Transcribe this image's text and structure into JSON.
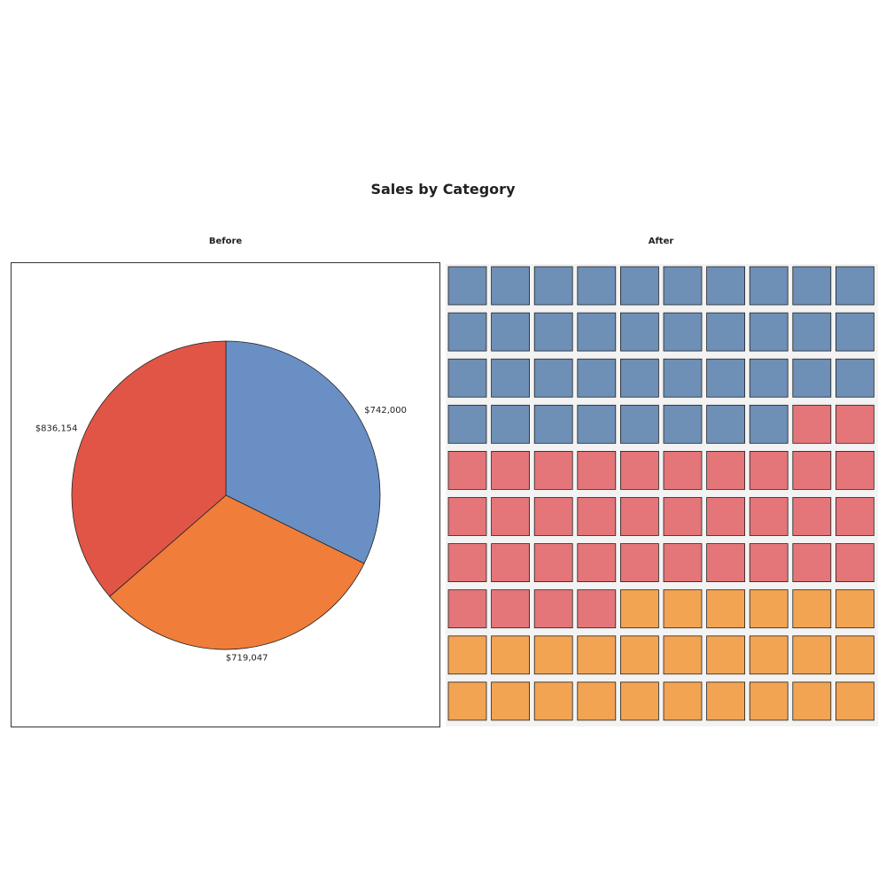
{
  "title": "Sales by Category",
  "panels": {
    "before": "Before",
    "after": "After"
  },
  "chart_data": [
    {
      "type": "pie",
      "panel": "Before",
      "slices": [
        {
          "value": 742000,
          "label": "$742,000",
          "color": "#6a8fc4"
        },
        {
          "value": 719047,
          "label": "$719,047",
          "color": "#f07d3a"
        },
        {
          "value": 836154,
          "label": "$836,154",
          "color": "#e15546"
        }
      ]
    },
    {
      "type": "waffle",
      "panel": "After",
      "rows": 10,
      "cols": 10,
      "cells": [
        {
          "count": 38,
          "color": "#6e8fb6"
        },
        {
          "count": 36,
          "color": "#e47579"
        },
        {
          "count": 26,
          "color": "#f2a453"
        }
      ]
    }
  ]
}
